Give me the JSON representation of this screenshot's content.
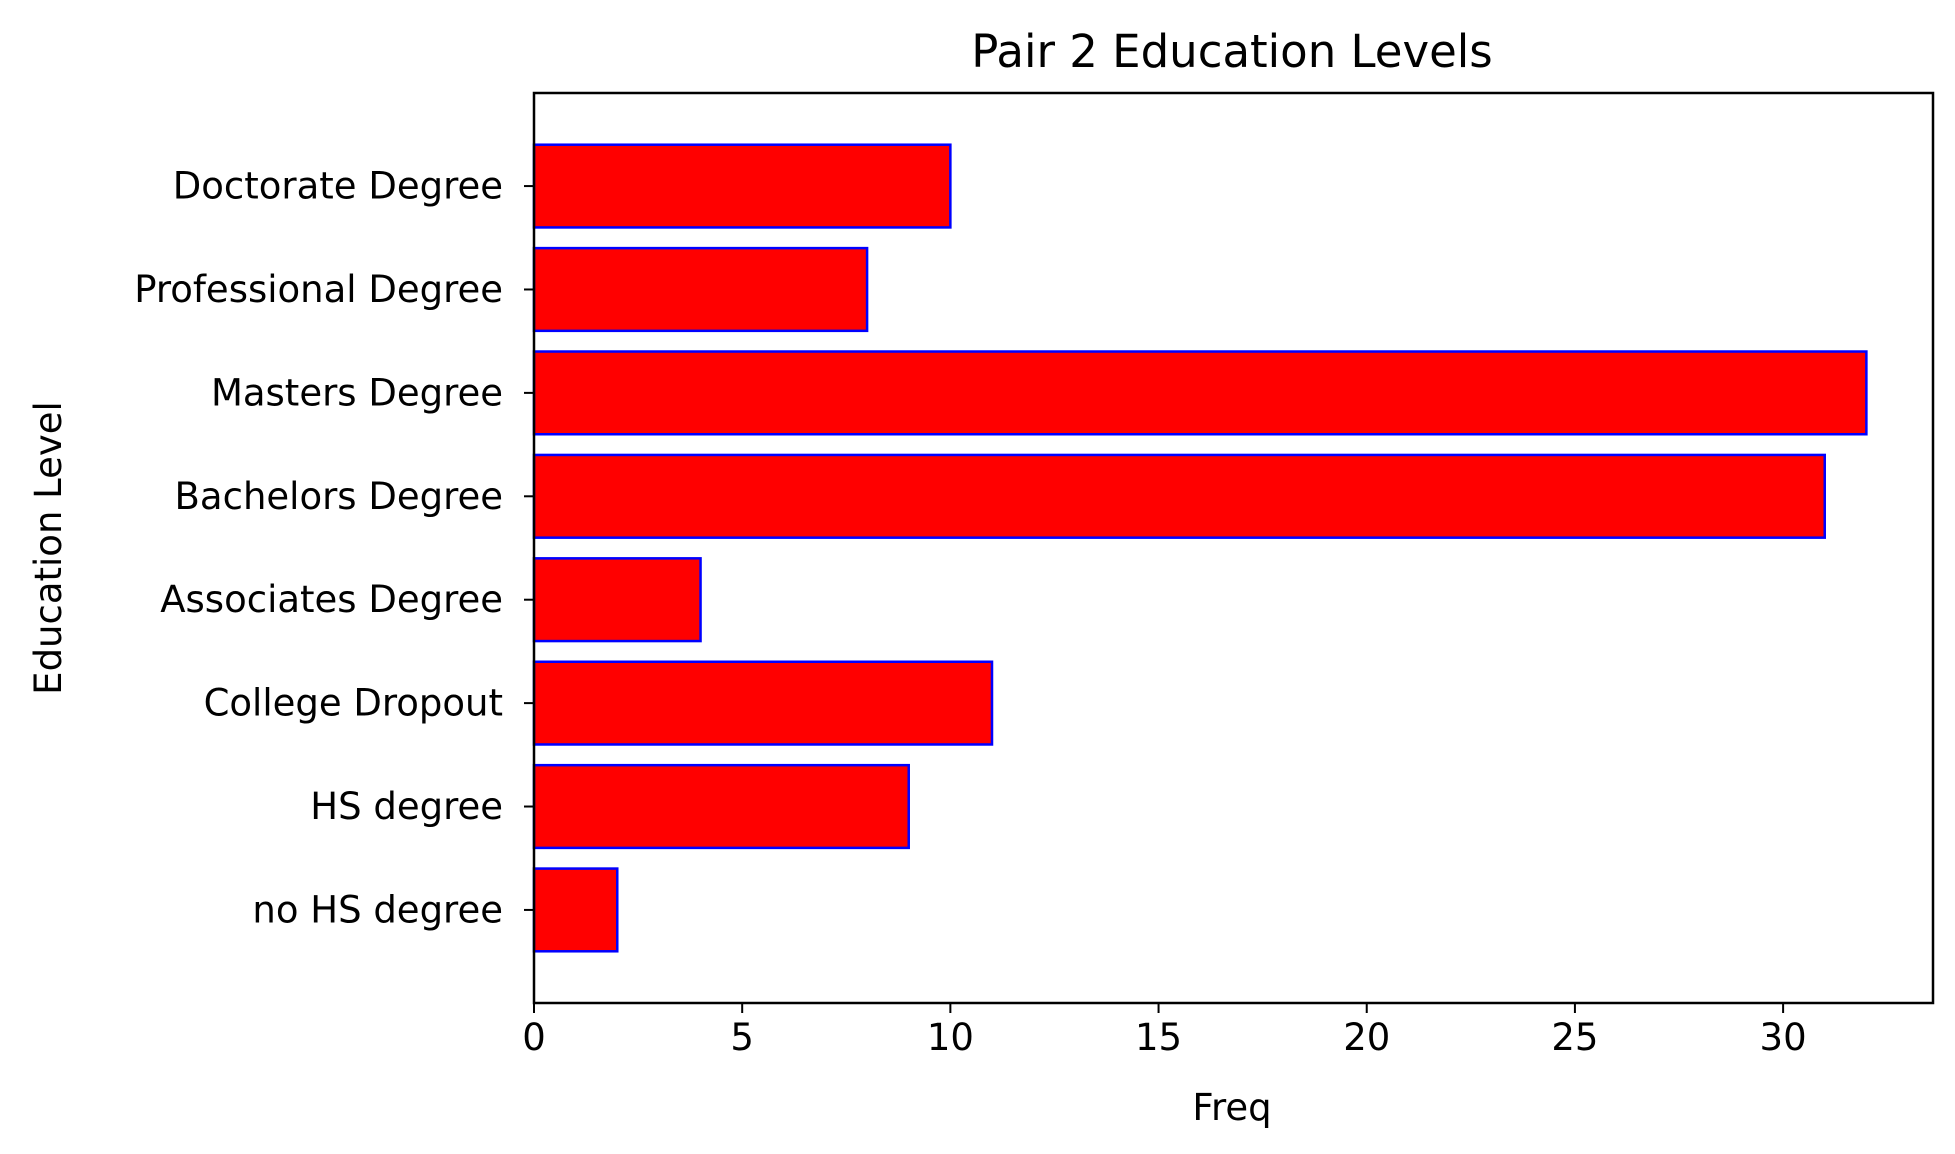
{
  "chart_data": {
    "type": "bar",
    "orientation": "horizontal",
    "title": "Pair 2 Education Levels",
    "xlabel": "Freq",
    "ylabel": "Education Level",
    "categories": [
      "no HS degree",
      "HS degree",
      "College Dropout",
      "Associates Degree",
      "Bachelors Degree",
      "Masters Degree",
      "Professional Degree",
      "Doctorate Degree"
    ],
    "values": [
      2,
      9,
      11,
      4,
      31,
      32,
      8,
      10
    ],
    "xlim": [
      0,
      33.6
    ],
    "xticks": [
      0,
      5,
      10,
      15,
      20,
      25,
      30
    ],
    "grid": false,
    "bar_color": "#ff0000",
    "bar_edge_color": "#0000ff"
  }
}
